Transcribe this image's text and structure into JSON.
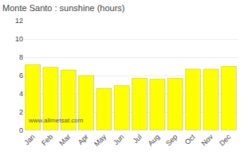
{
  "chart_data": {
    "type": "bar",
    "title": "Monte Santo : sunshine (hours)",
    "categories": [
      "Jan",
      "Feb",
      "Mar",
      "Apr",
      "May",
      "Jun",
      "Jul",
      "Aug",
      "Sep",
      "Oct",
      "Nov",
      "Dec"
    ],
    "values": [
      7.2,
      6.9,
      6.6,
      6.0,
      4.6,
      4.9,
      5.7,
      5.6,
      5.7,
      6.7,
      6.7,
      7.0
    ],
    "color": "#FFFF00",
    "ylim": [
      0,
      12
    ],
    "yticks": [
      0,
      2,
      4,
      6,
      8,
      10,
      12
    ],
    "grid": true,
    "annotations": [
      "www.allmetsat.com"
    ]
  }
}
